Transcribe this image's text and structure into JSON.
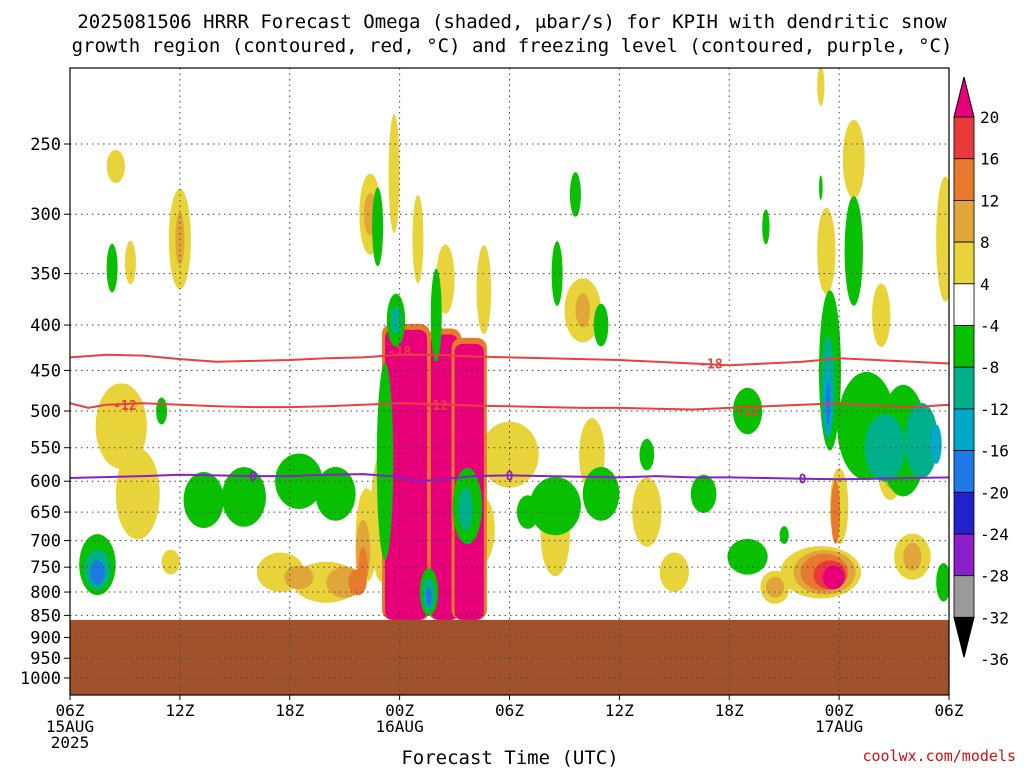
{
  "chart_data": {
    "type": "heatmap",
    "title": "2025081506 HRRR Forecast Omega (shaded, μbar/s) for KPIH with dendritic snow growth region (contoured, red, °C) and freezing level (contoured, purple, °C)",
    "title_line1": "2025081506 HRRR Forecast Omega (shaded, μbar/s) for KPIH with dendritic snow",
    "title_line2": "growth region (contoured, red, °C) and freezing level (contoured, purple, °C)",
    "xlabel": "Forecast Time (UTC)",
    "ylabel": "",
    "credit": "coolwx.com/models",
    "x_ticks": [
      {
        "h": 0,
        "line1": "06Z",
        "line2": "15AUG",
        "line3": "2025"
      },
      {
        "h": 6,
        "line1": "12Z",
        "line2": "",
        "line3": ""
      },
      {
        "h": 12,
        "line1": "18Z",
        "line2": "",
        "line3": ""
      },
      {
        "h": 18,
        "line1": "00Z",
        "line2": "16AUG",
        "line3": ""
      },
      {
        "h": 24,
        "line1": "06Z",
        "line2": "",
        "line3": ""
      },
      {
        "h": 30,
        "line1": "12Z",
        "line2": "",
        "line3": ""
      },
      {
        "h": 36,
        "line1": "18Z",
        "line2": "",
        "line3": ""
      },
      {
        "h": 42,
        "line1": "00Z",
        "line2": "17AUG",
        "line3": ""
      },
      {
        "h": 48,
        "line1": "06Z",
        "line2": "",
        "line3": ""
      }
    ],
    "xlim": [
      0,
      48
    ],
    "y_ticks": [
      250,
      300,
      350,
      400,
      450,
      500,
      550,
      600,
      650,
      700,
      750,
      800,
      850,
      900,
      950,
      1000
    ],
    "ylim_hPa": [
      200,
      1045
    ],
    "y_scale": "pressure",
    "grid": true,
    "colorbar": {
      "labels": [
        "20",
        "16",
        "12",
        "8",
        "4",
        "-4",
        "-8",
        "-12",
        "-16",
        "-20",
        "-24",
        "-28",
        "-32",
        "-36"
      ],
      "colors": [
        "#e8007a",
        "#e83a3a",
        "#e87a2e",
        "#e0a63a",
        "#e8d43a",
        "#ffffff",
        "#08c000",
        "#00b08a",
        "#00a8c8",
        "#1e78e6",
        "#2222cc",
        "#8a1ec8",
        "#9a9a9a",
        "#000000"
      ]
    },
    "terrain": {
      "surface_hPa": 860,
      "color": "#a0522d"
    },
    "contours": [
      {
        "name": "-18",
        "color": "#e84040",
        "points": [
          [
            0,
            435
          ],
          [
            2,
            432
          ],
          [
            4,
            433
          ],
          [
            6,
            437
          ],
          [
            8,
            440
          ],
          [
            10,
            439
          ],
          [
            12,
            438
          ],
          [
            14,
            436
          ],
          [
            16,
            435
          ],
          [
            18,
            432
          ],
          [
            20,
            432
          ],
          [
            22,
            434
          ],
          [
            24,
            435
          ],
          [
            26,
            436
          ],
          [
            28,
            437
          ],
          [
            30,
            438
          ],
          [
            32,
            440
          ],
          [
            34,
            442
          ],
          [
            36,
            444
          ],
          [
            38,
            442
          ],
          [
            40,
            440
          ],
          [
            42,
            436
          ],
          [
            44,
            438
          ],
          [
            46,
            440
          ],
          [
            48,
            442
          ]
        ],
        "labels": [
          [
            18,
            428
          ],
          [
            35,
            442
          ]
        ]
      },
      {
        "name": "-12",
        "color": "#e84040",
        "points": [
          [
            0,
            490
          ],
          [
            1,
            496
          ],
          [
            2,
            492
          ],
          [
            4,
            490
          ],
          [
            6,
            492
          ],
          [
            8,
            494
          ],
          [
            10,
            495
          ],
          [
            12,
            495
          ],
          [
            14,
            494
          ],
          [
            16,
            492
          ],
          [
            18,
            490
          ],
          [
            20,
            491
          ],
          [
            22,
            493
          ],
          [
            24,
            494
          ],
          [
            26,
            495
          ],
          [
            28,
            496
          ],
          [
            30,
            496
          ],
          [
            32,
            497
          ],
          [
            34,
            498
          ],
          [
            36,
            496
          ],
          [
            38,
            494
          ],
          [
            40,
            492
          ],
          [
            42,
            490
          ],
          [
            44,
            493
          ],
          [
            46,
            495
          ],
          [
            48,
            492
          ]
        ],
        "labels": [
          [
            3,
            492
          ],
          [
            20,
            492
          ],
          [
            37,
            500
          ]
        ]
      },
      {
        "name": "0",
        "color": "#8a1ec8",
        "points": [
          [
            0,
            595
          ],
          [
            4,
            592
          ],
          [
            6,
            590
          ],
          [
            8,
            591
          ],
          [
            10,
            592
          ],
          [
            12,
            592
          ],
          [
            14,
            590
          ],
          [
            16,
            589
          ],
          [
            18,
            593
          ],
          [
            19,
            600
          ],
          [
            20,
            598
          ],
          [
            22,
            592
          ],
          [
            24,
            591
          ],
          [
            26,
            592
          ],
          [
            28,
            593
          ],
          [
            30,
            594
          ],
          [
            32,
            592
          ],
          [
            34,
            594
          ],
          [
            36,
            594
          ],
          [
            38,
            595
          ],
          [
            40,
            596
          ],
          [
            42,
            597
          ],
          [
            44,
            596
          ],
          [
            46,
            595
          ],
          [
            48,
            594
          ]
        ],
        "labels": [
          [
            10,
            592
          ],
          [
            24,
            591
          ],
          [
            40,
            596
          ]
        ]
      }
    ],
    "blobs": [
      {
        "t": 0,
        "x": 1.5,
        "p": 740,
        "rx": 1.4,
        "ry": 140
      },
      {
        "t": -2,
        "x": 1.5,
        "p": 745,
        "rx": 1.0,
        "ry": 110
      },
      {
        "t": -3,
        "x": 1.5,
        "p": 755,
        "rx": 0.7,
        "ry": 70
      },
      {
        "t": -5,
        "x": 1.5,
        "p": 760,
        "rx": 0.4,
        "ry": 40
      },
      {
        "t": 4,
        "x": 2.8,
        "p": 520,
        "rx": 1.4,
        "ry": 110
      },
      {
        "t": 4,
        "x": 3.7,
        "p": 620,
        "rx": 1.2,
        "ry": 140
      },
      {
        "t": 4,
        "x": 2.5,
        "p": 265,
        "rx": 0.5,
        "ry": 20
      },
      {
        "t": -2,
        "x": 2.3,
        "p": 345,
        "rx": 0.3,
        "ry": 40
      },
      {
        "t": 4,
        "x": 3.3,
        "p": 340,
        "rx": 0.3,
        "ry": 35
      },
      {
        "t": -2,
        "x": 5.0,
        "p": 500,
        "rx": 0.3,
        "ry": 30
      },
      {
        "t": 4,
        "x": 5.5,
        "p": 740,
        "rx": 0.5,
        "ry": 40
      },
      {
        "t": 4,
        "x": 6.0,
        "p": 320,
        "rx": 0.6,
        "ry": 80
      },
      {
        "t": 8,
        "x": 6.0,
        "p": 320,
        "rx": 0.25,
        "ry": 40
      },
      {
        "t": 4,
        "x": 11.5,
        "p": 760,
        "rx": 1.3,
        "ry": 70
      },
      {
        "t": 8,
        "x": 12.5,
        "p": 770,
        "rx": 0.8,
        "ry": 40
      },
      {
        "t": -2,
        "x": 7.3,
        "p": 630,
        "rx": 1.1,
        "ry": 85
      },
      {
        "t": -2,
        "x": 9.5,
        "p": 625,
        "rx": 1.2,
        "ry": 90
      },
      {
        "t": -2,
        "x": 12.5,
        "p": 600,
        "rx": 1.3,
        "ry": 80
      },
      {
        "t": -2,
        "x": 14.5,
        "p": 620,
        "rx": 1.1,
        "ry": 80
      },
      {
        "t": 4,
        "x": 16.4,
        "p": 300,
        "rx": 0.6,
        "ry": 60
      },
      {
        "t": 8,
        "x": 16.4,
        "p": 300,
        "rx": 0.35,
        "ry": 30
      },
      {
        "t": 4,
        "x": 14.0,
        "p": 780,
        "rx": 1.8,
        "ry": 75
      },
      {
        "t": 8,
        "x": 15.0,
        "p": 780,
        "rx": 1.0,
        "ry": 55
      },
      {
        "t": 12,
        "x": 15.7,
        "p": 780,
        "rx": 0.5,
        "ry": 45
      },
      {
        "t": 4,
        "x": 16.2,
        "p": 690,
        "rx": 0.6,
        "ry": 160
      },
      {
        "t": 8,
        "x": 16.0,
        "p": 720,
        "rx": 0.4,
        "ry": 110
      },
      {
        "t": 12,
        "x": 16.0,
        "p": 750,
        "rx": 0.25,
        "ry": 70
      },
      {
        "t": -2,
        "x": 17.2,
        "p": 570,
        "rx": 0.45,
        "ry": 280
      },
      {
        "t": -2,
        "x": 16.8,
        "p": 310,
        "rx": 0.3,
        "ry": 60
      },
      {
        "t": 4,
        "x": 17.7,
        "p": 270,
        "rx": 0.3,
        "ry": 80
      },
      {
        "t": -2,
        "x": 17.8,
        "p": 395,
        "rx": 0.5,
        "ry": 50
      },
      {
        "t": -3,
        "x": 17.8,
        "p": 395,
        "rx": 0.3,
        "ry": 25
      },
      {
        "t": 4,
        "x": 18.5,
        "p": 490,
        "rx": 1.4,
        "ry": 100
      },
      {
        "t": 8,
        "x": 18.5,
        "p": 480,
        "rx": 1.2,
        "ry": 60
      },
      {
        "t": 4,
        "x": 17.0,
        "p": 660,
        "rx": 0.6,
        "ry": 210
      },
      {
        "t": 4,
        "x": 21.6,
        "p": 660,
        "rx": 0.6,
        "ry": 210
      },
      {
        "t": 8,
        "x": 17.5,
        "p": 660,
        "rx": 0.5,
        "ry": 200
      },
      {
        "t": 8,
        "x": 21.0,
        "p": 660,
        "rx": 0.5,
        "ry": 200
      },
      {
        "t": 12,
        "x": 18.5,
        "p": 560,
        "rx": 1.5,
        "ry": 80
      },
      {
        "t": 12,
        "x": 20.5,
        "p": 560,
        "rx": 1.2,
        "ry": 80
      },
      {
        "t": 4,
        "x": 19.0,
        "p": 320,
        "rx": 0.3,
        "ry": 70
      },
      {
        "t": 4,
        "x": 20.5,
        "p": 355,
        "rx": 0.5,
        "ry": 60
      },
      {
        "t": 4,
        "x": 22.6,
        "p": 365,
        "rx": 0.4,
        "ry": 80
      },
      {
        "t": -2,
        "x": 20.0,
        "p": 390,
        "rx": 0.3,
        "ry": 90
      },
      {
        "t": -2,
        "x": 21.7,
        "p": 640,
        "rx": 0.8,
        "ry": 120
      },
      {
        "t": -3,
        "x": 21.6,
        "p": 645,
        "rx": 0.4,
        "ry": 65
      },
      {
        "t": 4,
        "x": 22.5,
        "p": 680,
        "rx": 0.7,
        "ry": 110
      },
      {
        "t": 4,
        "x": 24.0,
        "p": 560,
        "rx": 1.6,
        "ry": 90
      },
      {
        "t": -2,
        "x": 25.0,
        "p": 650,
        "rx": 0.6,
        "ry": 50
      },
      {
        "t": -2,
        "x": 26.5,
        "p": 640,
        "rx": 1.4,
        "ry": 90
      },
      {
        "t": -2,
        "x": 29.0,
        "p": 620,
        "rx": 1.0,
        "ry": 80
      },
      {
        "t": -2,
        "x": 34.6,
        "p": 620,
        "rx": 0.7,
        "ry": 55
      },
      {
        "t": 4,
        "x": 26.5,
        "p": 690,
        "rx": 0.8,
        "ry": 140
      },
      {
        "t": 4,
        "x": 28.5,
        "p": 560,
        "rx": 0.7,
        "ry": 100
      },
      {
        "t": 4,
        "x": 31.5,
        "p": 650,
        "rx": 0.8,
        "ry": 110
      },
      {
        "t": 4,
        "x": 33.0,
        "p": 760,
        "rx": 0.8,
        "ry": 70
      },
      {
        "t": -2,
        "x": 27.6,
        "p": 285,
        "rx": 0.3,
        "ry": 30
      },
      {
        "t": 4,
        "x": 28.0,
        "p": 385,
        "rx": 1.0,
        "ry": 60
      },
      {
        "t": 8,
        "x": 28.0,
        "p": 385,
        "rx": 0.4,
        "ry": 30
      },
      {
        "t": -2,
        "x": 26.6,
        "p": 350,
        "rx": 0.3,
        "ry": 55
      },
      {
        "t": -2,
        "x": 29.0,
        "p": 400,
        "rx": 0.4,
        "ry": 40
      },
      {
        "t": -2,
        "x": 31.5,
        "p": 560,
        "rx": 0.4,
        "ry": 40
      },
      {
        "t": -2,
        "x": 37.0,
        "p": 500,
        "rx": 0.8,
        "ry": 55
      },
      {
        "t": -2,
        "x": 37.0,
        "p": 730,
        "rx": 1.1,
        "ry": 60
      },
      {
        "t": -2,
        "x": 39.0,
        "p": 690,
        "rx": 0.25,
        "ry": 25
      },
      {
        "t": -2,
        "x": 38.0,
        "p": 310,
        "rx": 0.2,
        "ry": 25
      },
      {
        "t": -2,
        "x": 41.0,
        "p": 280,
        "rx": 0.1,
        "ry": 15
      },
      {
        "t": 4,
        "x": 38.5,
        "p": 790,
        "rx": 0.8,
        "ry": 60
      },
      {
        "t": 8,
        "x": 38.5,
        "p": 790,
        "rx": 0.5,
        "ry": 35
      },
      {
        "t": 4,
        "x": 41.0,
        "p": 760,
        "rx": 2.2,
        "ry": 95
      },
      {
        "t": 8,
        "x": 41.2,
        "p": 760,
        "rx": 1.7,
        "ry": 80
      },
      {
        "t": 12,
        "x": 41.2,
        "p": 760,
        "rx": 1.3,
        "ry": 65
      },
      {
        "t": 16,
        "x": 41.5,
        "p": 765,
        "rx": 0.9,
        "ry": 50
      },
      {
        "t": 20,
        "x": 41.7,
        "p": 770,
        "rx": 0.6,
        "ry": 40
      },
      {
        "t": 4,
        "x": 42.0,
        "p": 640,
        "rx": 0.5,
        "ry": 120
      },
      {
        "t": 12,
        "x": 41.8,
        "p": 650,
        "rx": 0.25,
        "ry": 100
      },
      {
        "t": -2,
        "x": 41.5,
        "p": 450,
        "rx": 0.6,
        "ry": 180
      },
      {
        "t": -3,
        "x": 41.4,
        "p": 470,
        "rx": 0.35,
        "ry": 120
      },
      {
        "t": -4,
        "x": 41.4,
        "p": 490,
        "rx": 0.22,
        "ry": 80
      },
      {
        "t": -5,
        "x": 41.4,
        "p": 490,
        "rx": 0.12,
        "ry": 50
      },
      {
        "t": -2,
        "x": 43.5,
        "p": 520,
        "rx": 1.6,
        "ry": 140
      },
      {
        "t": -3,
        "x": 44.5,
        "p": 550,
        "rx": 1.1,
        "ry": 90
      },
      {
        "t": -2,
        "x": 42.8,
        "p": 330,
        "rx": 0.5,
        "ry": 90
      },
      {
        "t": -2,
        "x": 45.5,
        "p": 540,
        "rx": 1.3,
        "ry": 150
      },
      {
        "t": -3,
        "x": 46.5,
        "p": 540,
        "rx": 0.9,
        "ry": 100
      },
      {
        "t": -4,
        "x": 47.3,
        "p": 545,
        "rx": 0.3,
        "ry": 50
      },
      {
        "t": -2,
        "x": 47.7,
        "p": 780,
        "rx": 0.4,
        "ry": 70
      },
      {
        "t": 4,
        "x": 41.3,
        "p": 330,
        "rx": 0.5,
        "ry": 70
      },
      {
        "t": 4,
        "x": 42.8,
        "p": 260,
        "rx": 0.6,
        "ry": 50
      },
      {
        "t": 4,
        "x": 44.3,
        "p": 390,
        "rx": 0.5,
        "ry": 60
      },
      {
        "t": 4,
        "x": 44.8,
        "p": 580,
        "rx": 0.7,
        "ry": 90
      },
      {
        "t": 8,
        "x": 44.8,
        "p": 580,
        "rx": 0.4,
        "ry": 55
      },
      {
        "t": 4,
        "x": 46.0,
        "p": 730,
        "rx": 1.0,
        "ry": 80
      },
      {
        "t": 8,
        "x": 46.0,
        "p": 730,
        "rx": 0.5,
        "ry": 45
      },
      {
        "t": 4,
        "x": 47.8,
        "p": 320,
        "rx": 0.5,
        "ry": 100
      },
      {
        "t": 4,
        "x": 41.0,
        "p": 215,
        "rx": 0.2,
        "ry": 20
      }
    ],
    "cores": [
      {
        "x0": 17.2,
        "x1": 19.5,
        "p0": 405,
        "p1": 860
      },
      {
        "x0": 19.7,
        "x1": 21.2,
        "p0": 410,
        "p1": 860
      },
      {
        "x0": 21.0,
        "x1": 22.6,
        "p0": 420,
        "p1": 860
      }
    ],
    "core_holes": [
      {
        "t": -2,
        "x": 19.6,
        "p": 800,
        "rx": 0.5,
        "ry": 90
      },
      {
        "t": -3,
        "x": 19.6,
        "p": 805,
        "rx": 0.35,
        "ry": 60
      },
      {
        "t": -5,
        "x": 19.6,
        "p": 810,
        "rx": 0.15,
        "ry": 30
      }
    ]
  }
}
